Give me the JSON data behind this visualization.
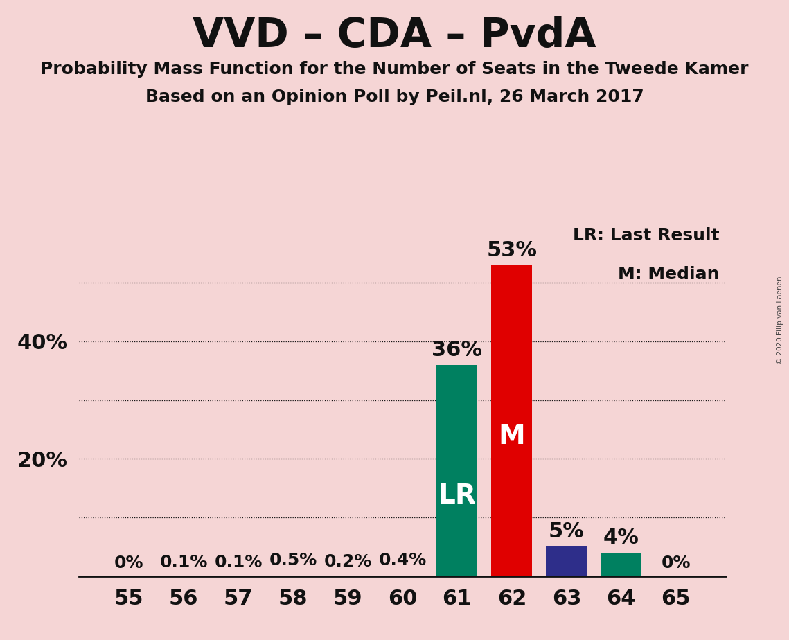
{
  "title": "VVD – CDA – PvdA",
  "subtitle1": "Probability Mass Function for the Number of Seats in the Tweede Kamer",
  "subtitle2": "Based on an Opinion Poll by Peil.nl, 26 March 2017",
  "copyright": "© 2020 Filip van Laenen",
  "categories": [
    55,
    56,
    57,
    58,
    59,
    60,
    61,
    62,
    63,
    64,
    65
  ],
  "values": [
    0.0,
    0.1,
    0.1,
    0.5,
    0.2,
    0.4,
    36.0,
    53.0,
    5.0,
    4.0,
    0.0
  ],
  "value_labels": [
    "0%",
    "0.1%",
    "0.1%",
    "0.5%",
    "0.2%",
    "0.4%",
    "36%",
    "53%",
    "5%",
    "4%",
    "0%"
  ],
  "bar_colors": [
    "#f5d5d5",
    "#f5d5d5",
    "#008060",
    "#f5d5d5",
    "#f5d5d5",
    "#f5d5d5",
    "#008060",
    "#e00000",
    "#2e2e8a",
    "#008060",
    "#f5d5d5"
  ],
  "lr_bar_index": 6,
  "median_bar_index": 7,
  "lr_label": "LR",
  "median_label": "M",
  "legend_lr": "LR: Last Result",
  "legend_m": "M: Median",
  "background_color": "#f5d5d5",
  "ylim": [
    0,
    60
  ],
  "ytick_positions": [
    20,
    40
  ],
  "ytick_labels": [
    "20%",
    "40%"
  ],
  "grid_yticks": [
    10,
    20,
    30,
    40,
    50
  ],
  "bar_width": 0.75,
  "title_fontsize": 42,
  "subtitle_fontsize": 18,
  "tick_fontsize": 22,
  "label_fontsize_large": 22,
  "label_fontsize_small": 18,
  "inbar_fontsize": 28,
  "legend_fontsize": 18
}
